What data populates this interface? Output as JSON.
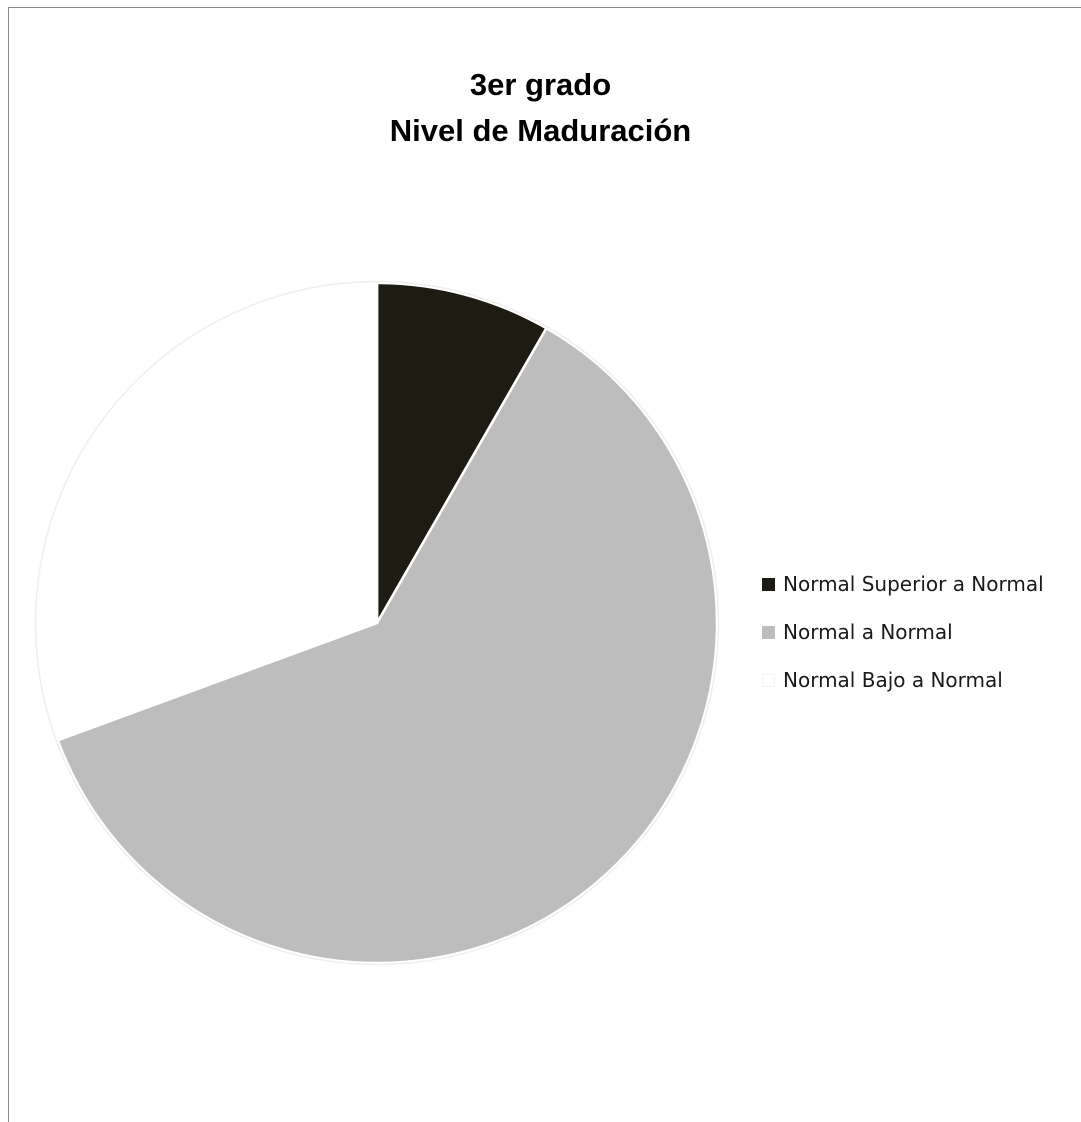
{
  "chart_data": {
    "type": "pie",
    "title_lines": [
      "3er grado",
      "Nivel de Maduración"
    ],
    "categories": [
      "Normal Superior a Normal",
      "Normal a Normal",
      "Normal Bajo a Normal"
    ],
    "values": [
      8.3,
      61.1,
      30.6
    ],
    "colors": [
      "#1e1c12",
      "#bdbdbd",
      "#ffffff"
    ],
    "start_angle_deg": 0,
    "direction": "clockwise",
    "legend_position": "right",
    "grid": false
  }
}
